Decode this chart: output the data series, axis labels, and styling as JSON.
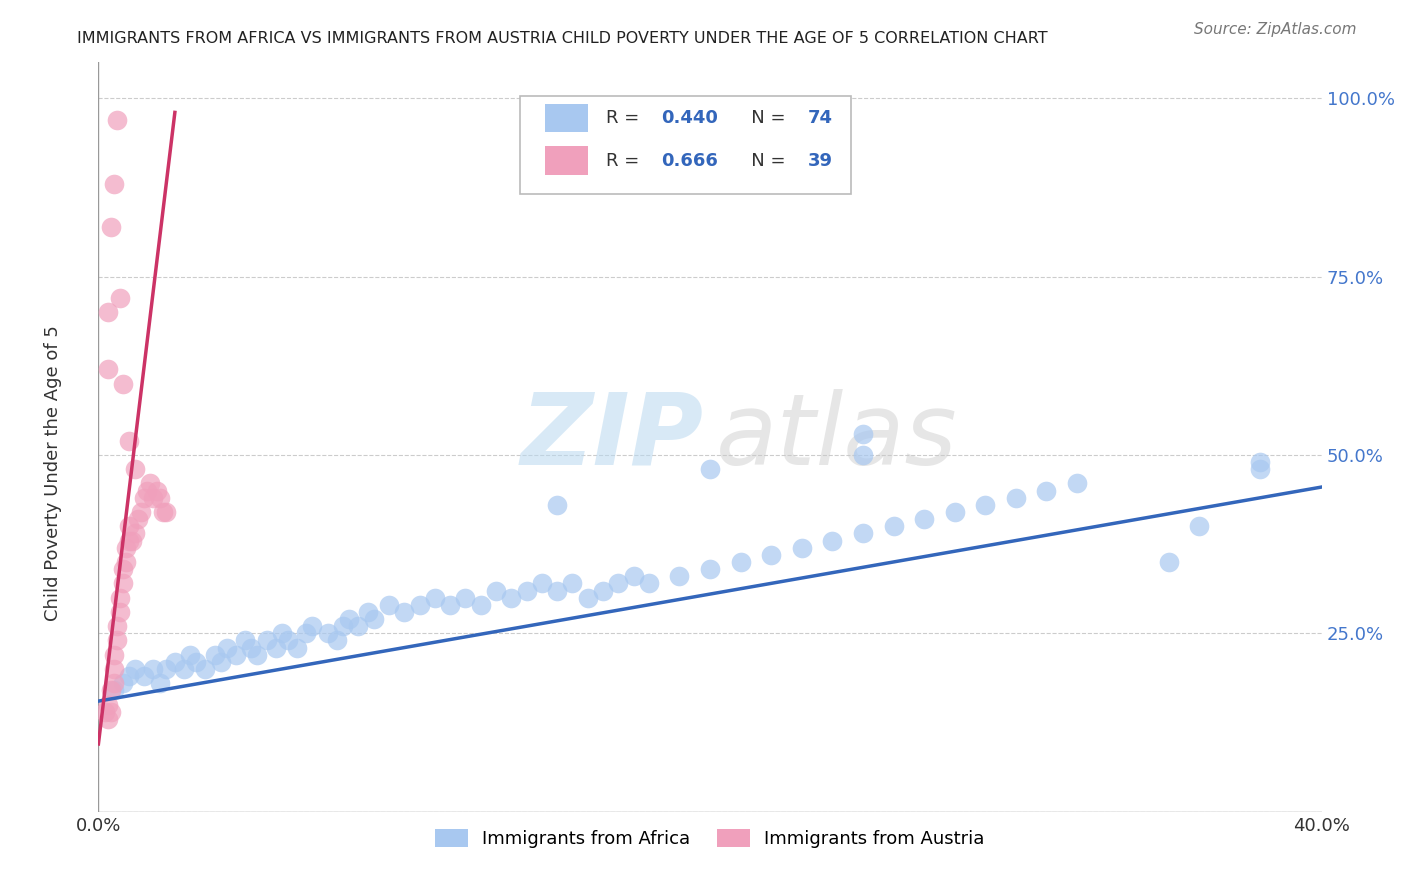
{
  "title": "IMMIGRANTS FROM AFRICA VS IMMIGRANTS FROM AUSTRIA CHILD POVERTY UNDER THE AGE OF 5 CORRELATION CHART",
  "source": "Source: ZipAtlas.com",
  "ylabel": "Child Poverty Under the Age of 5",
  "y_tick_labels": [
    "",
    "25.0%",
    "50.0%",
    "75.0%",
    "100.0%"
  ],
  "x_lim": [
    0.0,
    0.4
  ],
  "y_lim": [
    0.0,
    1.05
  ],
  "africa_color": "#a8c8f0",
  "austria_color": "#f0a0bc",
  "africa_line_color": "#3366bb",
  "austria_line_color": "#cc3366",
  "watermark_zip": "ZIP",
  "watermark_atlas": "atlas",
  "africa_x": [
    0.005,
    0.008,
    0.01,
    0.012,
    0.015,
    0.018,
    0.02,
    0.022,
    0.025,
    0.028,
    0.03,
    0.032,
    0.035,
    0.038,
    0.04,
    0.042,
    0.045,
    0.048,
    0.05,
    0.052,
    0.055,
    0.058,
    0.06,
    0.062,
    0.065,
    0.068,
    0.07,
    0.075,
    0.078,
    0.08,
    0.082,
    0.085,
    0.088,
    0.09,
    0.095,
    0.1,
    0.105,
    0.11,
    0.115,
    0.12,
    0.125,
    0.13,
    0.135,
    0.14,
    0.145,
    0.15,
    0.155,
    0.16,
    0.165,
    0.17,
    0.175,
    0.18,
    0.19,
    0.2,
    0.21,
    0.22,
    0.23,
    0.24,
    0.25,
    0.26,
    0.27,
    0.28,
    0.29,
    0.3,
    0.31,
    0.32,
    0.25,
    0.35,
    0.36,
    0.38,
    0.15,
    0.2,
    0.25,
    0.38
  ],
  "africa_y": [
    0.17,
    0.18,
    0.19,
    0.2,
    0.19,
    0.2,
    0.18,
    0.2,
    0.21,
    0.2,
    0.22,
    0.21,
    0.2,
    0.22,
    0.21,
    0.23,
    0.22,
    0.24,
    0.23,
    0.22,
    0.24,
    0.23,
    0.25,
    0.24,
    0.23,
    0.25,
    0.26,
    0.25,
    0.24,
    0.26,
    0.27,
    0.26,
    0.28,
    0.27,
    0.29,
    0.28,
    0.29,
    0.3,
    0.29,
    0.3,
    0.29,
    0.31,
    0.3,
    0.31,
    0.32,
    0.31,
    0.32,
    0.3,
    0.31,
    0.32,
    0.33,
    0.32,
    0.33,
    0.34,
    0.35,
    0.36,
    0.37,
    0.38,
    0.39,
    0.4,
    0.41,
    0.42,
    0.43,
    0.44,
    0.45,
    0.46,
    0.53,
    0.35,
    0.4,
    0.48,
    0.43,
    0.48,
    0.5,
    0.49
  ],
  "austria_x": [
    0.002,
    0.003,
    0.003,
    0.004,
    0.004,
    0.005,
    0.005,
    0.005,
    0.006,
    0.006,
    0.007,
    0.007,
    0.008,
    0.008,
    0.009,
    0.009,
    0.01,
    0.01,
    0.011,
    0.012,
    0.013,
    0.014,
    0.015,
    0.016,
    0.017,
    0.018,
    0.019,
    0.02,
    0.021,
    0.022,
    0.003,
    0.003,
    0.004,
    0.005,
    0.006,
    0.007,
    0.008,
    0.01,
    0.012
  ],
  "austria_y": [
    0.14,
    0.15,
    0.13,
    0.17,
    0.14,
    0.18,
    0.2,
    0.22,
    0.24,
    0.26,
    0.28,
    0.3,
    0.32,
    0.34,
    0.35,
    0.37,
    0.38,
    0.4,
    0.38,
    0.39,
    0.41,
    0.42,
    0.44,
    0.45,
    0.46,
    0.44,
    0.45,
    0.44,
    0.42,
    0.42,
    0.62,
    0.7,
    0.82,
    0.88,
    0.97,
    0.72,
    0.6,
    0.52,
    0.48
  ],
  "africa_line_x": [
    0.0,
    0.4
  ],
  "africa_line_y": [
    0.155,
    0.455
  ],
  "austria_line_x": [
    0.0,
    0.025
  ],
  "austria_line_y": [
    0.095,
    0.98
  ]
}
